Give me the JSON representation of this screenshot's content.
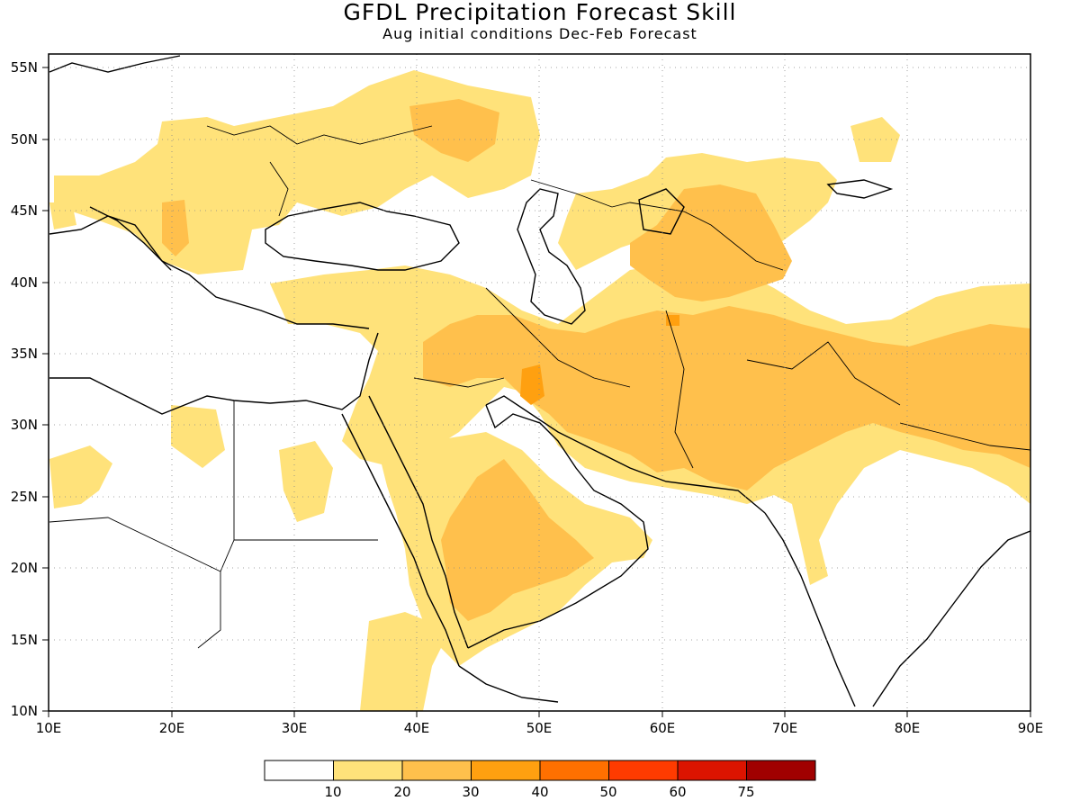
{
  "title": "GFDL Precipitation Forecast Skill",
  "subtitle": "Aug initial conditions   Dec-Feb Forecast",
  "map": {
    "lon_range": [
      10,
      90
    ],
    "lat_range": [
      10,
      56
    ],
    "lon_ticks": [
      "10E",
      "20E",
      "30E",
      "40E",
      "50E",
      "60E",
      "70E",
      "80E",
      "90E"
    ],
    "lat_ticks": [
      "55N",
      "50N",
      "45N",
      "40N",
      "35N",
      "30N",
      "25N",
      "20N",
      "15N",
      "10N"
    ],
    "grid": "dotted"
  },
  "legend": {
    "colors": [
      "#ffffff",
      "#ffe27a",
      "#ffc04c",
      "#ffa010",
      "#ff7000",
      "#ff3b00",
      "#dc1400",
      "#a00000"
    ],
    "labels": [
      "10",
      "20",
      "30",
      "40",
      "50",
      "60",
      "75"
    ]
  },
  "colors": {
    "level1": "#ffe27a",
    "level2": "#ffc04c",
    "level3": "#ffa010"
  }
}
